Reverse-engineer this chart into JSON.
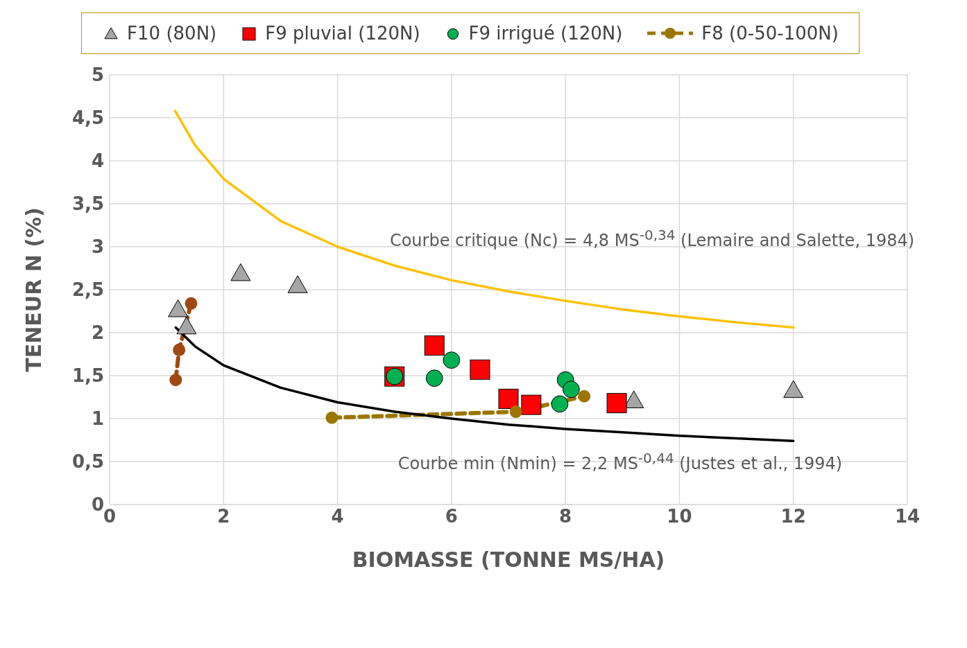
{
  "chart_data": {
    "type": "scatter",
    "xlabel": "BIOMASSE (TONNE MS/HA)",
    "ylabel": "TENEUR N (%)",
    "xlim": [
      0,
      14
    ],
    "xticks": [
      0,
      2,
      4,
      6,
      8,
      10,
      12,
      14
    ],
    "ylim": [
      0,
      5
    ],
    "yticks": [
      0,
      {
        "value": 0.5,
        "label": "0,5"
      },
      1,
      {
        "value": 1.5,
        "label": "1,5"
      },
      2,
      {
        "value": 2.5,
        "label": "2,5"
      },
      3,
      {
        "value": 3.5,
        "label": "3,5"
      },
      4,
      {
        "value": 4.5,
        "label": "4,5"
      },
      5
    ],
    "grid": true,
    "legend": "top",
    "series": [
      {
        "name": "F10 (80N)",
        "marker": "triangle",
        "color": "#a6a6a6",
        "x": [
          1.2,
          1.35,
          2.3,
          3.3,
          9.2,
          12.0
        ],
        "values": [
          2.27,
          2.07,
          2.69,
          2.55,
          1.21,
          1.33
        ]
      },
      {
        "name": "F9 pluvial (120N)",
        "marker": "square",
        "color": "#ff0000",
        "x": [
          5.0,
          5.7,
          6.5,
          7.0,
          7.4,
          8.9
        ],
        "values": [
          1.49,
          1.85,
          1.57,
          1.23,
          1.16,
          1.18
        ]
      },
      {
        "name": "F9 irrigué (120N)",
        "marker": "circle",
        "color": "#00b050",
        "x": [
          5.0,
          5.7,
          6.0,
          8.0,
          8.1,
          7.9
        ],
        "values": [
          1.49,
          1.47,
          1.68,
          1.45,
          1.34,
          1.17
        ]
      },
      {
        "name": "F8 (0-50-100N)",
        "type": "line",
        "marker": "circle",
        "line_style": "dashed",
        "color": "#9c7500",
        "x": [
          3.9,
          7.13,
          8.33
        ],
        "values": [
          1.01,
          1.08,
          1.26
        ]
      },
      {
        "type": "line",
        "marker": "circle",
        "line_style": "dashed",
        "color": "#a0480f",
        "x": [
          1.16,
          1.22,
          1.43
        ],
        "values": [
          1.45,
          1.8,
          2.34
        ]
      },
      {
        "type": "line",
        "marker": "none",
        "line_style": "solid",
        "color": "#ffc000",
        "x": [
          1.15,
          1.5,
          2,
          3,
          4,
          5,
          6,
          7,
          8,
          9,
          10,
          11,
          12
        ],
        "values": [
          4.58,
          4.18,
          3.79,
          3.3,
          3.0,
          2.78,
          2.61,
          2.48,
          2.37,
          2.27,
          2.19,
          2.12,
          2.06
        ]
      },
      {
        "type": "line",
        "marker": "none",
        "line_style": "solid",
        "color": "#000000",
        "x": [
          1.16,
          1.5,
          2,
          3,
          4,
          5,
          6,
          7,
          8,
          9,
          10,
          11,
          12
        ],
        "values": [
          2.06,
          1.84,
          1.62,
          1.36,
          1.19,
          1.08,
          1.0,
          0.93,
          0.88,
          0.84,
          0.8,
          0.77,
          0.74
        ]
      }
    ],
    "annotations": [
      "Courbe critique (Nc) = 4,8 MS$^{-0,34}$ (Lemaire and Salette, 1984)",
      "Courbe min (Nmin) = 2,2 MS$^{-0,44}$ (Justes et al., 1994)"
    ]
  }
}
